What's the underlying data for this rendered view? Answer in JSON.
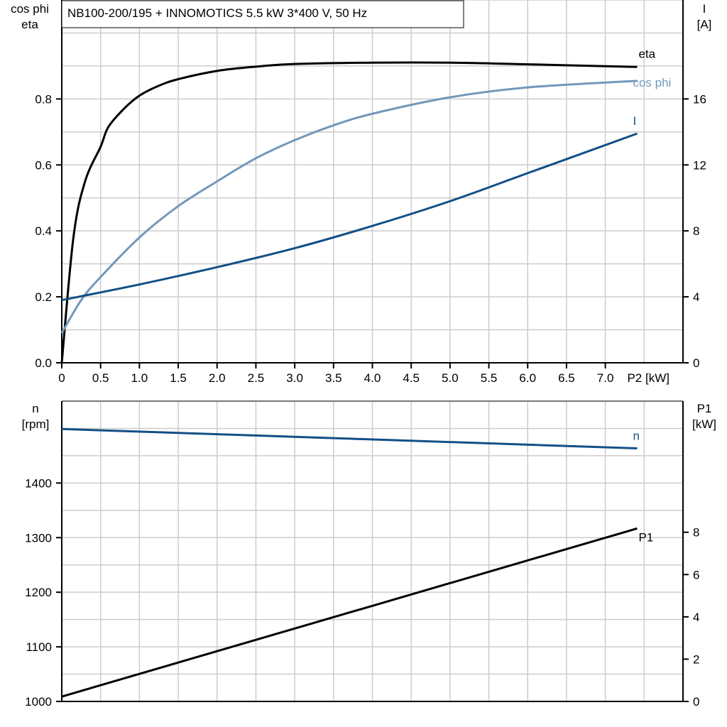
{
  "title": "NB100-200/195 + INNOMOTICS   5.5 kW   3*400 V, 50 Hz",
  "chart_data": [
    {
      "type": "line",
      "xlabel": "P2 [kW]",
      "x_ticks": [
        "0",
        "0.5",
        "1.0",
        "1.5",
        "2.0",
        "2.5",
        "3.0",
        "3.5",
        "4.0",
        "4.5",
        "5.0",
        "5.5",
        "6.0",
        "6.5",
        "7.0"
      ],
      "xlim": [
        0,
        8
      ],
      "ylabel_left": [
        "cos phi",
        "eta"
      ],
      "ylim_left": [
        0,
        1.1
      ],
      "y_ticks_left": [
        "0.0",
        "0.2",
        "0.4",
        "0.6",
        "0.8"
      ],
      "ylabel_right": [
        "I",
        "[A]"
      ],
      "ylim_right": [
        0,
        22
      ],
      "y_ticks_right": [
        "0",
        "4",
        "8",
        "12",
        "16"
      ],
      "grid": true,
      "series": [
        {
          "name": "eta",
          "axis": "left",
          "color": "#000000",
          "x": [
            0,
            0.15,
            0.3,
            0.5,
            0.6,
            0.8,
            1.0,
            1.25,
            1.5,
            2.0,
            2.5,
            3.0,
            4.0,
            5.0,
            6.0,
            7.41
          ],
          "y": [
            0,
            0.38,
            0.55,
            0.655,
            0.715,
            0.77,
            0.81,
            0.84,
            0.86,
            0.885,
            0.898,
            0.906,
            0.91,
            0.91,
            0.905,
            0.897
          ]
        },
        {
          "name": "cos phi",
          "axis": "left",
          "color": "#7298bb",
          "x": [
            0,
            0.25,
            0.5,
            1.0,
            1.5,
            2.0,
            2.5,
            3.0,
            3.5,
            4.0,
            5.0,
            6.0,
            7.41
          ],
          "y": [
            0.09,
            0.19,
            0.26,
            0.38,
            0.475,
            0.55,
            0.62,
            0.675,
            0.72,
            0.755,
            0.805,
            0.835,
            0.855
          ]
        },
        {
          "name": "I",
          "axis": "right",
          "color": "#124f86",
          "x": [
            0,
            1.0,
            2.0,
            3.0,
            4.0,
            5.0,
            6.0,
            7.41
          ],
          "y": [
            3.8,
            4.75,
            5.8,
            6.95,
            8.3,
            9.8,
            11.5,
            13.9
          ]
        }
      ]
    },
    {
      "type": "line",
      "xlim": [
        0,
        8
      ],
      "ylabel_left": [
        "n",
        "[rpm]"
      ],
      "ylim_left": [
        1000,
        1550
      ],
      "y_ticks_left": [
        "1000",
        "1100",
        "1200",
        "1300",
        "1400"
      ],
      "ylabel_right": [
        "P1",
        "[kW]"
      ],
      "ylim_right": [
        0,
        14.2
      ],
      "y_ticks_right": [
        "0",
        "2",
        "4",
        "6",
        "8"
      ],
      "grid": true,
      "series": [
        {
          "name": "n",
          "axis": "left",
          "color": "#124f86",
          "x": [
            0,
            7.41
          ],
          "y": [
            1499,
            1463.5
          ]
        },
        {
          "name": "P1",
          "axis": "right",
          "color": "#000000",
          "x": [
            0,
            7.41
          ],
          "y": [
            0.23,
            8.18
          ]
        }
      ]
    }
  ]
}
